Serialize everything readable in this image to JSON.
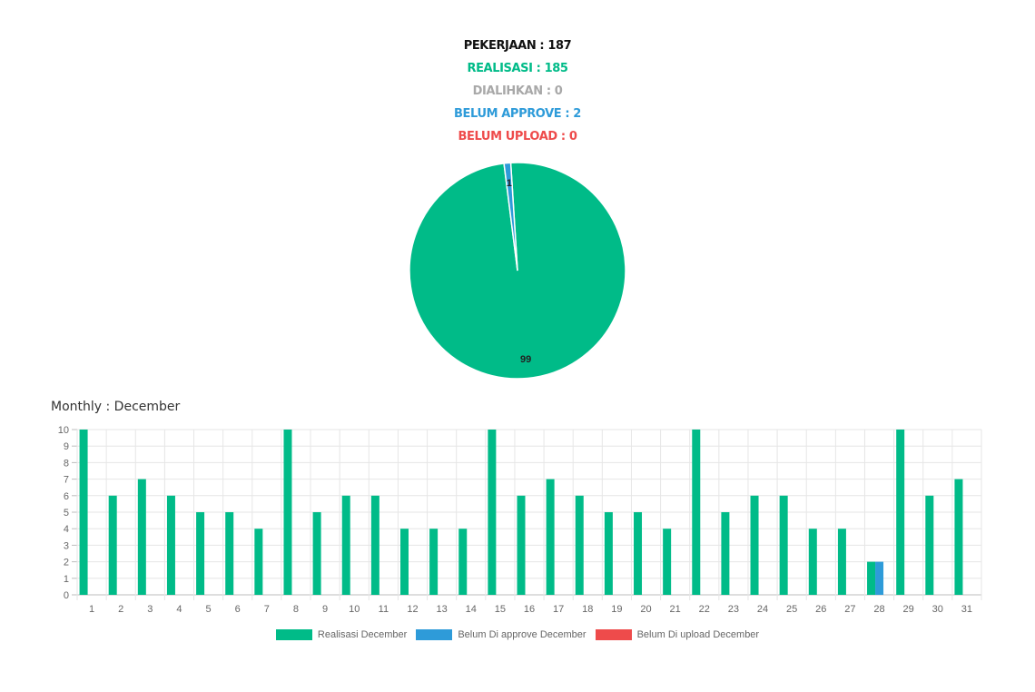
{
  "summary": {
    "pekerjaan": "PEKERJAAN : 187",
    "realisasi": "REALISASI : 185",
    "dialihkan": "DIALIHKAN : 0",
    "belum_approve": "BELUM APPROVE : 2",
    "belum_upload": "BELUM UPLOAD : 0"
  },
  "monthly_title": "Monthly : December",
  "colors": {
    "green": "#00bb88",
    "blue": "#2e9bd9",
    "red": "#ee4b4b",
    "gray": "#a8a8a8"
  },
  "chart_data": [
    {
      "type": "pie",
      "slices": [
        {
          "value": 99,
          "label": "99",
          "color": "#00bb88"
        },
        {
          "value": 1,
          "label": "1",
          "color": "#2e9bd9"
        }
      ]
    },
    {
      "type": "bar",
      "categories": [
        "1",
        "2",
        "3",
        "4",
        "5",
        "6",
        "7",
        "8",
        "9",
        "10",
        "11",
        "12",
        "13",
        "14",
        "15",
        "16",
        "17",
        "18",
        "19",
        "20",
        "21",
        "22",
        "23",
        "24",
        "25",
        "26",
        "27",
        "28",
        "29",
        "30",
        "31"
      ],
      "series": [
        {
          "name": "Realisasi December",
          "color": "#00bb88",
          "values": [
            10,
            6,
            7,
            6,
            5,
            5,
            4,
            10,
            5,
            6,
            6,
            4,
            4,
            4,
            10,
            6,
            7,
            6,
            5,
            5,
            4,
            10,
            5,
            6,
            6,
            4,
            4,
            2,
            10,
            6,
            7
          ]
        },
        {
          "name": "Belum Di approve December",
          "color": "#2e9bd9",
          "values": [
            0,
            0,
            0,
            0,
            0,
            0,
            0,
            0,
            0,
            0,
            0,
            0,
            0,
            0,
            0,
            0,
            0,
            0,
            0,
            0,
            0,
            0,
            0,
            0,
            0,
            0,
            0,
            2,
            0,
            0,
            0
          ]
        },
        {
          "name": "Belum Di upload December",
          "color": "#ee4b4b",
          "values": [
            0,
            0,
            0,
            0,
            0,
            0,
            0,
            0,
            0,
            0,
            0,
            0,
            0,
            0,
            0,
            0,
            0,
            0,
            0,
            0,
            0,
            0,
            0,
            0,
            0,
            0,
            0,
            0,
            0,
            0,
            0
          ]
        }
      ],
      "ylim": [
        0,
        10
      ],
      "yticks": [
        0,
        1,
        2,
        3,
        4,
        5,
        6,
        7,
        8,
        9,
        10
      ],
      "grid": true,
      "legend": "bottom"
    }
  ]
}
